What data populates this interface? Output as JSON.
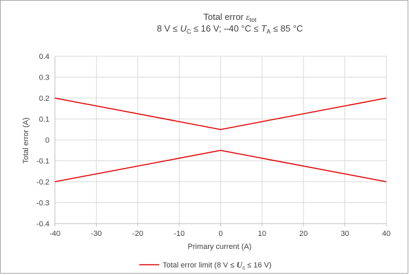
{
  "chart_data": {
    "type": "line",
    "title": {
      "line1_text": "Total error ",
      "line1_symbol": "ε",
      "line1_symbol_sub": "tot",
      "line2_parts": [
        "8 V ≤ ",
        "U",
        "C",
        " ≤ 16 V; –40 °C ≤ ",
        "T",
        "A",
        " ≤ 85 °C"
      ]
    },
    "xlabel": "Primary current (A)",
    "ylabel": "Total error (A)",
    "xlim": [
      -40,
      40
    ],
    "ylim": [
      -0.4,
      0.4
    ],
    "x_ticks": [
      "-40",
      "-30",
      "-20",
      "-10",
      "0",
      "10",
      "20",
      "30",
      "40"
    ],
    "y_ticks": [
      "0.4",
      "0.3",
      "0.2",
      "0.1",
      "0",
      "-0.1",
      "-0.2",
      "-0.3",
      "-0.4"
    ],
    "grid": true,
    "legend_position": "bottom",
    "legend": {
      "parts": [
        "Total error limit (8 V ≤ ",
        "U",
        "c",
        " ≤ 16 V)"
      ]
    },
    "series": [
      {
        "name": "Total error limit (8 V ≤ Uc ≤ 16 V)",
        "color": "#e00000",
        "x": [
          -40,
          0,
          40
        ],
        "y": [
          0.2,
          0.05,
          0.2
        ]
      },
      {
        "name": "Total error limit (8 V ≤ Uc ≤ 16 V)",
        "color": "#e00000",
        "x": [
          -40,
          0,
          40
        ],
        "y": [
          -0.2,
          -0.05,
          -0.2
        ]
      }
    ]
  }
}
